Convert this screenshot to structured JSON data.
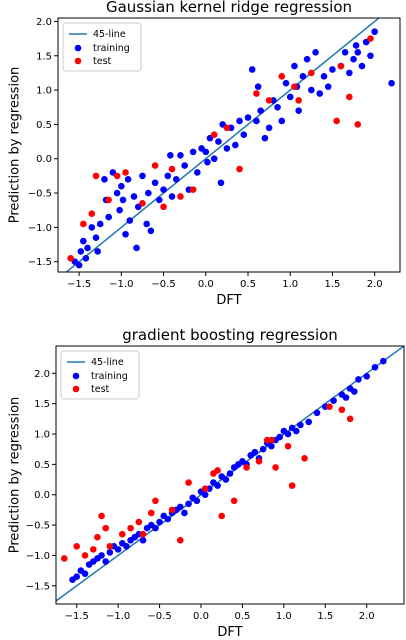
{
  "chart_data": [
    {
      "type": "scatter",
      "title": "Gaussian kernel ridge regression",
      "xlabel": "DFT",
      "ylabel": "Prediction by regression",
      "xlim": [
        -1.75,
        2.3
      ],
      "ylim": [
        -1.65,
        2.05
      ],
      "xticks": [
        -1.5,
        -1.0,
        -0.5,
        0.0,
        0.5,
        1.0,
        1.5,
        2.0
      ],
      "yticks": [
        -1.5,
        -1.0,
        -0.5,
        0.0,
        0.5,
        1.0,
        1.5,
        2.0
      ],
      "grid": false,
      "legend_position": "top-left",
      "legend": [
        "45-line",
        "training",
        "test"
      ],
      "line_45": {
        "name": "45-line",
        "color": "#1f77b4"
      },
      "series": [
        {
          "name": "training",
          "color": "#0000ff",
          "points": [
            [
              -1.55,
              -1.5
            ],
            [
              -1.5,
              -1.55
            ],
            [
              -1.48,
              -1.35
            ],
            [
              -1.45,
              -1.2
            ],
            [
              -1.42,
              -1.45
            ],
            [
              -1.4,
              -1.3
            ],
            [
              -1.35,
              -1.0
            ],
            [
              -1.3,
              -1.15
            ],
            [
              -1.28,
              -1.35
            ],
            [
              -1.25,
              -0.95
            ],
            [
              -1.2,
              -0.3
            ],
            [
              -1.18,
              -0.6
            ],
            [
              -1.15,
              -0.85
            ],
            [
              -1.1,
              -0.2
            ],
            [
              -1.05,
              -0.5
            ],
            [
              -1.02,
              -0.75
            ],
            [
              -1.0,
              -0.4
            ],
            [
              -0.98,
              -0.6
            ],
            [
              -0.95,
              -1.1
            ],
            [
              -0.92,
              -0.3
            ],
            [
              -0.9,
              -0.9
            ],
            [
              -0.85,
              -0.55
            ],
            [
              -0.82,
              -1.3
            ],
            [
              -0.8,
              -0.7
            ],
            [
              -0.75,
              -0.25
            ],
            [
              -0.7,
              -0.95
            ],
            [
              -0.68,
              -0.5
            ],
            [
              -0.65,
              -1.05
            ],
            [
              -0.6,
              -0.35
            ],
            [
              -0.55,
              -0.6
            ],
            [
              -0.5,
              -0.45
            ],
            [
              -0.45,
              -0.25
            ],
            [
              -0.42,
              0.05
            ],
            [
              -0.4,
              -0.55
            ],
            [
              -0.35,
              -0.3
            ],
            [
              -0.3,
              0.05
            ],
            [
              -0.25,
              -0.1
            ],
            [
              -0.2,
              -0.45
            ],
            [
              -0.15,
              0.1
            ],
            [
              -0.1,
              -0.2
            ],
            [
              -0.05,
              0.15
            ],
            [
              0.0,
              0.1
            ],
            [
              0.02,
              -0.05
            ],
            [
              0.05,
              0.3
            ],
            [
              0.1,
              0.0
            ],
            [
              0.15,
              0.25
            ],
            [
              0.18,
              -0.35
            ],
            [
              0.2,
              0.5
            ],
            [
              0.25,
              0.15
            ],
            [
              0.3,
              0.45
            ],
            [
              0.35,
              0.2
            ],
            [
              0.4,
              0.55
            ],
            [
              0.45,
              0.35
            ],
            [
              0.5,
              0.6
            ],
            [
              0.55,
              1.3
            ],
            [
              0.6,
              0.55
            ],
            [
              0.62,
              1.05
            ],
            [
              0.65,
              0.7
            ],
            [
              0.7,
              0.3
            ],
            [
              0.75,
              0.45
            ],
            [
              0.8,
              0.85
            ],
            [
              0.85,
              0.75
            ],
            [
              0.9,
              0.55
            ],
            [
              0.95,
              1.1
            ],
            [
              1.0,
              0.9
            ],
            [
              1.05,
              1.35
            ],
            [
              1.08,
              1.05
            ],
            [
              1.1,
              0.7
            ],
            [
              1.15,
              1.2
            ],
            [
              1.2,
              1.45
            ],
            [
              1.25,
              1.0
            ],
            [
              1.3,
              1.55
            ],
            [
              1.35,
              0.95
            ],
            [
              1.4,
              1.2
            ],
            [
              1.45,
              1.05
            ],
            [
              1.5,
              1.3
            ],
            [
              1.6,
              1.35
            ],
            [
              1.65,
              1.55
            ],
            [
              1.7,
              1.25
            ],
            [
              1.75,
              1.45
            ],
            [
              1.78,
              1.65
            ],
            [
              1.8,
              1.55
            ],
            [
              1.85,
              1.35
            ],
            [
              1.9,
              1.7
            ],
            [
              1.95,
              1.5
            ],
            [
              2.0,
              1.85
            ],
            [
              2.2,
              1.1
            ]
          ]
        },
        {
          "name": "test",
          "color": "#ff0000",
          "points": [
            [
              -1.6,
              -1.45
            ],
            [
              -1.45,
              -0.95
            ],
            [
              -1.35,
              -0.8
            ],
            [
              -1.3,
              -0.25
            ],
            [
              -1.15,
              -0.6
            ],
            [
              -1.05,
              -0.25
            ],
            [
              -0.95,
              -0.2
            ],
            [
              -0.75,
              -0.65
            ],
            [
              -0.6,
              -0.1
            ],
            [
              -0.5,
              -0.7
            ],
            [
              -0.4,
              -0.15
            ],
            [
              -0.3,
              -0.55
            ],
            [
              -0.15,
              -0.45
            ],
            [
              0.1,
              0.35
            ],
            [
              0.25,
              0.45
            ],
            [
              0.4,
              -0.15
            ],
            [
              0.6,
              0.95
            ],
            [
              0.75,
              0.85
            ],
            [
              0.9,
              1.2
            ],
            [
              1.05,
              1.05
            ],
            [
              1.1,
              0.85
            ],
            [
              1.25,
              1.25
            ],
            [
              1.55,
              0.55
            ],
            [
              1.6,
              1.35
            ],
            [
              1.7,
              0.9
            ],
            [
              1.8,
              0.5
            ],
            [
              1.95,
              1.75
            ]
          ]
        }
      ]
    },
    {
      "type": "scatter",
      "title": "gradient boosting regression",
      "xlabel": "DFT",
      "ylabel": "Prediction by regression",
      "xlim": [
        -1.75,
        2.45
      ],
      "ylim": [
        -1.8,
        2.45
      ],
      "xticks": [
        -1.5,
        -1.0,
        -0.5,
        0.0,
        0.5,
        1.0,
        1.5,
        2.0
      ],
      "yticks": [
        -1.5,
        -1.0,
        -0.5,
        0.0,
        0.5,
        1.0,
        1.5,
        2.0
      ],
      "grid": false,
      "legend_position": "top-left",
      "legend": [
        "45-line",
        "training",
        "test"
      ],
      "line_45": {
        "name": "45-line",
        "color": "#1f77b4"
      },
      "series": [
        {
          "name": "training",
          "color": "#0000ff",
          "points": [
            [
              -1.55,
              -1.4
            ],
            [
              -1.5,
              -1.35
            ],
            [
              -1.45,
              -1.25
            ],
            [
              -1.4,
              -1.3
            ],
            [
              -1.35,
              -1.15
            ],
            [
              -1.3,
              -1.1
            ],
            [
              -1.25,
              -1.05
            ],
            [
              -1.2,
              -1.0
            ],
            [
              -1.15,
              -1.1
            ],
            [
              -1.1,
              -0.95
            ],
            [
              -1.05,
              -0.85
            ],
            [
              -1.0,
              -0.9
            ],
            [
              -0.95,
              -0.8
            ],
            [
              -0.9,
              -0.85
            ],
            [
              -0.85,
              -0.75
            ],
            [
              -0.8,
              -0.7
            ],
            [
              -0.75,
              -0.65
            ],
            [
              -0.7,
              -0.75
            ],
            [
              -0.65,
              -0.55
            ],
            [
              -0.6,
              -0.5
            ],
            [
              -0.55,
              -0.55
            ],
            [
              -0.5,
              -0.45
            ],
            [
              -0.45,
              -0.35
            ],
            [
              -0.4,
              -0.4
            ],
            [
              -0.35,
              -0.3
            ],
            [
              -0.3,
              -0.25
            ],
            [
              -0.25,
              -0.2
            ],
            [
              -0.2,
              -0.3
            ],
            [
              -0.15,
              -0.15
            ],
            [
              -0.1,
              -0.05
            ],
            [
              -0.05,
              -0.1
            ],
            [
              0.0,
              0.05
            ],
            [
              0.05,
              0.0
            ],
            [
              0.1,
              0.1
            ],
            [
              0.15,
              0.2
            ],
            [
              0.2,
              0.15
            ],
            [
              0.25,
              0.3
            ],
            [
              0.3,
              0.25
            ],
            [
              0.35,
              0.35
            ],
            [
              0.4,
              0.45
            ],
            [
              0.45,
              0.5
            ],
            [
              0.5,
              0.55
            ],
            [
              0.55,
              0.5
            ],
            [
              0.6,
              0.65
            ],
            [
              0.65,
              0.7
            ],
            [
              0.7,
              0.6
            ],
            [
              0.75,
              0.75
            ],
            [
              0.8,
              0.85
            ],
            [
              0.85,
              0.8
            ],
            [
              0.9,
              0.9
            ],
            [
              0.95,
              0.95
            ],
            [
              1.0,
              1.05
            ],
            [
              1.05,
              1.0
            ],
            [
              1.1,
              1.1
            ],
            [
              1.15,
              1.05
            ],
            [
              1.2,
              1.15
            ],
            [
              1.3,
              1.2
            ],
            [
              1.4,
              1.35
            ],
            [
              1.5,
              1.45
            ],
            [
              1.6,
              1.55
            ],
            [
              1.7,
              1.65
            ],
            [
              1.75,
              1.6
            ],
            [
              1.8,
              1.75
            ],
            [
              1.85,
              1.7
            ],
            [
              1.9,
              1.9
            ],
            [
              2.0,
              1.95
            ],
            [
              2.1,
              2.1
            ],
            [
              2.2,
              2.2
            ]
          ]
        },
        {
          "name": "test",
          "color": "#ff0000",
          "points": [
            [
              -1.65,
              -1.05
            ],
            [
              -1.5,
              -0.85
            ],
            [
              -1.4,
              -1.0
            ],
            [
              -1.3,
              -0.9
            ],
            [
              -1.25,
              -0.7
            ],
            [
              -1.2,
              -0.35
            ],
            [
              -1.15,
              -0.55
            ],
            [
              -1.1,
              -0.85
            ],
            [
              -0.95,
              -0.65
            ],
            [
              -0.85,
              -0.55
            ],
            [
              -0.75,
              -0.45
            ],
            [
              -0.7,
              -0.65
            ],
            [
              -0.6,
              -0.3
            ],
            [
              -0.55,
              -0.1
            ],
            [
              -0.35,
              -0.25
            ],
            [
              -0.25,
              -0.75
            ],
            [
              -0.15,
              0.2
            ],
            [
              0.05,
              0.1
            ],
            [
              0.15,
              0.35
            ],
            [
              0.2,
              0.4
            ],
            [
              0.25,
              -0.35
            ],
            [
              0.4,
              -0.1
            ],
            [
              0.55,
              0.45
            ],
            [
              0.7,
              0.55
            ],
            [
              0.8,
              0.9
            ],
            [
              0.85,
              0.9
            ],
            [
              0.9,
              0.45
            ],
            [
              1.05,
              0.8
            ],
            [
              1.1,
              0.15
            ],
            [
              1.25,
              0.6
            ],
            [
              1.55,
              1.45
            ],
            [
              1.7,
              1.4
            ],
            [
              1.8,
              1.25
            ]
          ]
        }
      ]
    }
  ]
}
